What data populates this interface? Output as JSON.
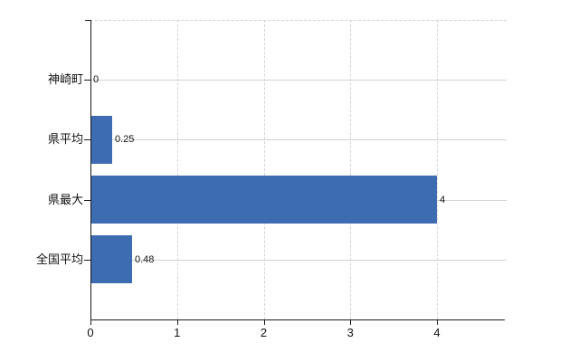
{
  "chart_data": {
    "type": "bar",
    "orientation": "horizontal",
    "title": "",
    "xlabel": "",
    "ylabel": "",
    "categories": [
      "神崎町",
      "県平均",
      "県最大",
      "全国平均"
    ],
    "values": [
      0,
      0.25,
      4,
      0.48
    ],
    "data_labels": [
      "0",
      "0.25",
      "4",
      "0.48"
    ],
    "x_ticks": [
      "0",
      "1",
      "2",
      "3",
      "4"
    ],
    "x_tick_values": [
      0,
      1,
      2,
      3,
      4
    ],
    "xlim": [
      0,
      4.78
    ],
    "grid": true,
    "legend_position": "none",
    "bar_color": "#3e6cb1",
    "axis_color": "#1a1a1a",
    "h_gridline_color": "#cfd6cf",
    "v_gridline_color": "#d8d2d8",
    "background_color": "#ffffff"
  }
}
